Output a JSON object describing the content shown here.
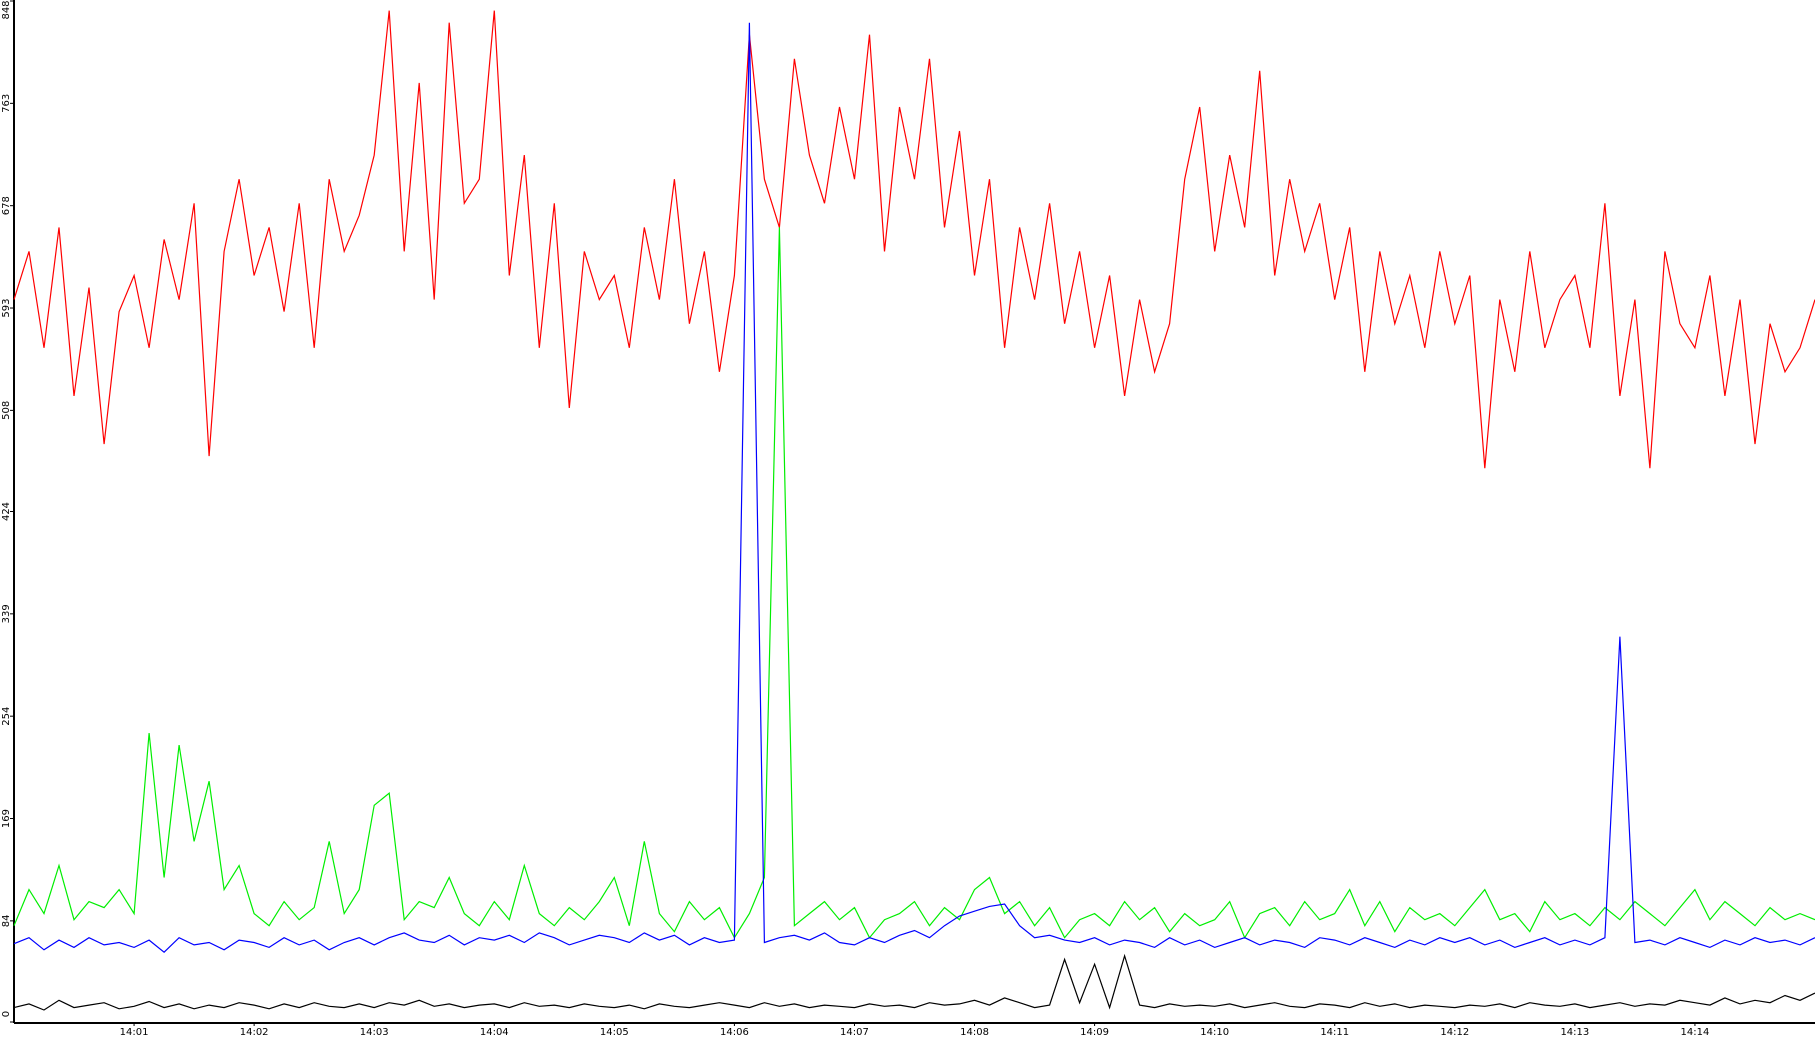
{
  "chart_data": {
    "type": "line",
    "x": [
      0,
      0.125,
      0.25,
      0.375,
      0.5,
      0.625,
      0.75,
      0.875,
      1,
      1.125,
      1.25,
      1.375,
      1.5,
      1.625,
      1.75,
      1.875,
      2,
      2.125,
      2.25,
      2.375,
      2.5,
      2.625,
      2.75,
      2.875,
      3,
      3.125,
      3.25,
      3.375,
      3.5,
      3.625,
      3.75,
      3.875,
      4,
      4.125,
      4.25,
      4.375,
      4.5,
      4.625,
      4.75,
      4.875,
      5,
      5.125,
      5.25,
      5.375,
      5.5,
      5.625,
      5.75,
      5.875,
      6,
      6.125,
      6.25,
      6.375,
      6.5,
      6.625,
      6.75,
      6.875,
      7,
      7.125,
      7.25,
      7.375,
      7.5,
      7.625,
      7.75,
      7.875,
      8,
      8.125,
      8.25,
      8.375,
      8.5,
      8.625,
      8.75,
      8.875,
      9,
      9.125,
      9.25,
      9.375,
      9.5,
      9.625,
      9.75,
      9.875,
      10,
      10.125,
      10.25,
      10.375,
      10.5,
      10.625,
      10.75,
      10.875,
      11,
      11.125,
      11.25,
      11.375,
      11.5,
      11.625,
      11.75,
      11.875,
      12,
      12.125,
      12.25,
      12.375,
      12.5,
      12.625,
      12.75,
      12.875,
      13,
      13.125,
      13.25,
      13.375,
      13.5,
      13.625,
      13.75,
      13.875,
      14,
      14.125,
      14.25,
      14.375,
      14.5,
      14.625,
      14.75,
      14.875,
      15
    ],
    "series": [
      {
        "color": "#ff0000",
        "values": [
          600,
          640,
          560,
          660,
          520,
          610,
          480,
          590,
          620,
          560,
          650,
          600,
          680,
          470,
          640,
          700,
          620,
          660,
          590,
          680,
          560,
          700,
          640,
          670,
          720,
          840,
          640,
          780,
          600,
          830,
          680,
          700,
          840,
          620,
          720,
          560,
          680,
          510,
          640,
          600,
          620,
          560,
          660,
          600,
          700,
          580,
          640,
          540,
          620,
          820,
          700,
          660,
          800,
          720,
          680,
          760,
          700,
          820,
          640,
          760,
          700,
          800,
          660,
          740,
          620,
          700,
          560,
          660,
          600,
          680,
          580,
          640,
          560,
          620,
          520,
          600,
          540,
          580,
          700,
          760,
          640,
          720,
          660,
          790,
          620,
          700,
          640,
          680,
          600,
          660,
          540,
          640,
          580,
          620,
          560,
          640,
          580,
          620,
          460,
          600,
          540,
          640,
          560,
          600,
          620,
          560,
          680,
          520,
          600,
          460,
          640,
          580,
          560,
          620,
          520,
          600,
          480,
          580,
          540,
          560,
          600
        ]
      },
      {
        "color": "#00ee00",
        "values": [
          80,
          110,
          90,
          130,
          85,
          100,
          95,
          110,
          90,
          240,
          120,
          230,
          150,
          200,
          110,
          130,
          90,
          80,
          100,
          85,
          95,
          150,
          90,
          110,
          180,
          190,
          85,
          100,
          95,
          120,
          90,
          80,
          100,
          85,
          130,
          90,
          80,
          95,
          85,
          100,
          120,
          80,
          150,
          90,
          75,
          100,
          85,
          95,
          70,
          90,
          120,
          660,
          80,
          90,
          100,
          85,
          95,
          70,
          85,
          90,
          100,
          80,
          95,
          85,
          110,
          120,
          90,
          100,
          80,
          95,
          70,
          85,
          90,
          80,
          100,
          85,
          95,
          75,
          90,
          80,
          85,
          100,
          70,
          90,
          95,
          80,
          100,
          85,
          90,
          110,
          80,
          100,
          75,
          95,
          85,
          90,
          80,
          95,
          110,
          85,
          90,
          75,
          100,
          85,
          90,
          80,
          95,
          85,
          100,
          90,
          80,
          95,
          110,
          85,
          100,
          90,
          80,
          95,
          85,
          90,
          85
        ]
      },
      {
        "color": "#0000ff",
        "values": [
          65,
          70,
          60,
          68,
          62,
          70,
          64,
          66,
          62,
          68,
          58,
          70,
          64,
          66,
          60,
          68,
          66,
          62,
          70,
          64,
          68,
          60,
          66,
          70,
          64,
          70,
          74,
          68,
          66,
          72,
          64,
          70,
          68,
          72,
          66,
          74,
          70,
          64,
          68,
          72,
          70,
          66,
          74,
          68,
          72,
          64,
          70,
          66,
          68,
          830,
          66,
          70,
          72,
          68,
          74,
          66,
          64,
          70,
          66,
          72,
          76,
          70,
          80,
          88,
          92,
          96,
          98,
          80,
          70,
          72,
          68,
          66,
          70,
          64,
          68,
          66,
          62,
          70,
          64,
          68,
          62,
          66,
          70,
          64,
          68,
          66,
          62,
          70,
          68,
          64,
          70,
          66,
          62,
          68,
          64,
          70,
          66,
          70,
          64,
          68,
          62,
          66,
          70,
          64,
          68,
          64,
          70,
          320,
          66,
          68,
          64,
          70,
          66,
          62,
          68,
          64,
          70,
          66,
          68,
          64,
          70
        ]
      },
      {
        "color": "#000000",
        "values": [
          12,
          15,
          10,
          18,
          12,
          14,
          16,
          11,
          13,
          17,
          12,
          15,
          11,
          14,
          12,
          16,
          14,
          11,
          15,
          12,
          16,
          13,
          12,
          15,
          12,
          16,
          14,
          18,
          13,
          15,
          12,
          14,
          15,
          12,
          16,
          13,
          14,
          12,
          15,
          13,
          12,
          14,
          11,
          15,
          13,
          12,
          14,
          16,
          14,
          12,
          16,
          13,
          15,
          12,
          14,
          13,
          12,
          15,
          13,
          14,
          12,
          16,
          14,
          15,
          18,
          14,
          20,
          16,
          12,
          14,
          52,
          16,
          48,
          12,
          55,
          14,
          12,
          15,
          13,
          14,
          13,
          15,
          12,
          14,
          16,
          13,
          12,
          15,
          14,
          12,
          16,
          13,
          15,
          12,
          14,
          13,
          12,
          14,
          13,
          15,
          12,
          16,
          14,
          13,
          15,
          12,
          14,
          16,
          13,
          15,
          14,
          18,
          16,
          14,
          20,
          15,
          18,
          16,
          22,
          18,
          24
        ]
      }
    ],
    "xlim": [
      0,
      15
    ],
    "xticks": [
      {
        "value": 1,
        "label": "14:01"
      },
      {
        "value": 2,
        "label": "14:02"
      },
      {
        "value": 3,
        "label": "14:03"
      },
      {
        "value": 4,
        "label": "14:04"
      },
      {
        "value": 5,
        "label": "14:05"
      },
      {
        "value": 6,
        "label": "14:06"
      },
      {
        "value": 7,
        "label": "14:07"
      },
      {
        "value": 8,
        "label": "14:08"
      },
      {
        "value": 9,
        "label": "14:09"
      },
      {
        "value": 10,
        "label": "14:10"
      },
      {
        "value": 11,
        "label": "14:11"
      },
      {
        "value": 12,
        "label": "14:12"
      },
      {
        "value": 13,
        "label": "14:13"
      },
      {
        "value": 14,
        "label": "14:14"
      }
    ],
    "ylim": [
      0,
      848
    ],
    "yticks": [
      0,
      84,
      169,
      254,
      339,
      424,
      508,
      593,
      678,
      763,
      848
    ]
  }
}
